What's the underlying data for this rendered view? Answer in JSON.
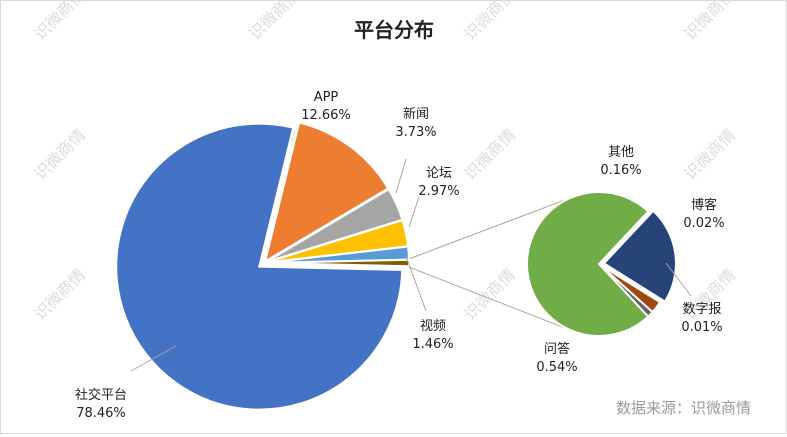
{
  "chart_data": {
    "type": "pie",
    "title": "平台分布",
    "source": "数据来源：识微商情",
    "watermark": "识微商情",
    "main_pie": [
      {
        "name": "社交平台",
        "value": 78.46,
        "label": "78.46%",
        "color": "#4472C4"
      },
      {
        "name": "APP",
        "value": 12.66,
        "label": "12.66%",
        "color": "#ED7D31"
      },
      {
        "name": "新闻",
        "value": 3.73,
        "label": "3.73%",
        "color": "#A5A5A5"
      },
      {
        "name": "论坛",
        "value": 2.97,
        "label": "2.97%",
        "color": "#FFC000"
      },
      {
        "name": "视频",
        "value": 1.46,
        "label": "1.46%",
        "color": "#5B9BD5"
      },
      {
        "name": "其他（合计）",
        "value": 0.73,
        "label": "",
        "color": "#7f6000"
      }
    ],
    "sub_pie": [
      {
        "name": "问答",
        "value": 0.54,
        "label": "0.54%",
        "color": "#70AD47"
      },
      {
        "name": "其他",
        "value": 0.16,
        "label": "0.16%",
        "color": "#264478"
      },
      {
        "name": "博客",
        "value": 0.02,
        "label": "0.02%",
        "color": "#9E480E"
      },
      {
        "name": "数字报",
        "value": 0.01,
        "label": "0.01%",
        "color": "#636363"
      }
    ]
  }
}
